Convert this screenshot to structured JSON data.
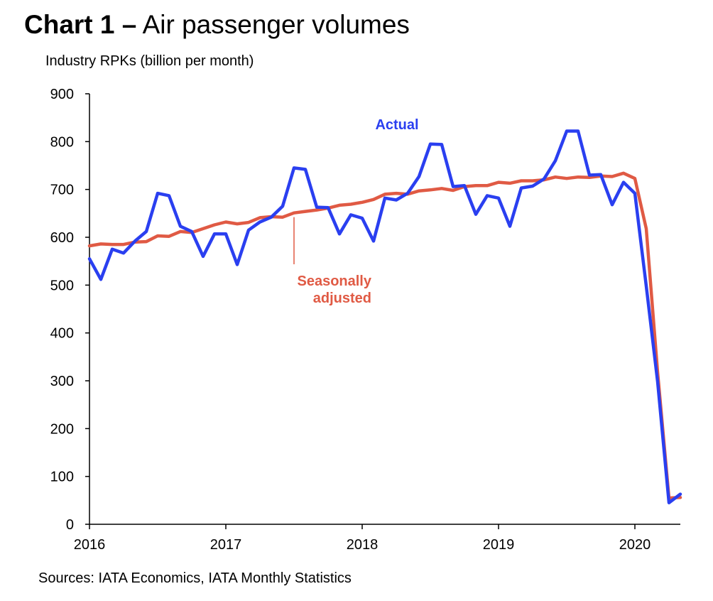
{
  "header": {
    "title_bold": "Chart 1 –",
    "title_rest": " Air passenger volumes"
  },
  "footer": {
    "source": "Sources: IATA Economics, IATA Monthly Statistics"
  },
  "colors": {
    "actual": "#2a3ff0",
    "seasonally_adjusted": "#e05a44",
    "axis": "#000000"
  },
  "chart_data": {
    "type": "line",
    "title": "Chart 1 – Air passenger volumes",
    "ylabel": "Industry RPKs (billion per month)",
    "xlabel": "",
    "ylim": [
      0,
      900
    ],
    "yticks": [
      0,
      100,
      200,
      300,
      400,
      500,
      600,
      700,
      800,
      900
    ],
    "xlim": [
      "2016-01",
      "2020-05"
    ],
    "xticks": [
      "2016",
      "2017",
      "2018",
      "2019",
      "2020"
    ],
    "grid": false,
    "annotations": [
      "Actual",
      "Seasonally",
      "adjusted"
    ],
    "x": [
      "2016-01",
      "2016-02",
      "2016-03",
      "2016-04",
      "2016-05",
      "2016-06",
      "2016-07",
      "2016-08",
      "2016-09",
      "2016-10",
      "2016-11",
      "2016-12",
      "2017-01",
      "2017-02",
      "2017-03",
      "2017-04",
      "2017-05",
      "2017-06",
      "2017-07",
      "2017-08",
      "2017-09",
      "2017-10",
      "2017-11",
      "2017-12",
      "2018-01",
      "2018-02",
      "2018-03",
      "2018-04",
      "2018-05",
      "2018-06",
      "2018-07",
      "2018-08",
      "2018-09",
      "2018-10",
      "2018-11",
      "2018-12",
      "2019-01",
      "2019-02",
      "2019-03",
      "2019-04",
      "2019-05",
      "2019-06",
      "2019-07",
      "2019-08",
      "2019-09",
      "2019-10",
      "2019-11",
      "2019-12",
      "2020-01",
      "2020-02",
      "2020-03",
      "2020-04",
      "2020-05"
    ],
    "series": [
      {
        "name": "Actual",
        "values": [
          555,
          512,
          575,
          567,
          592,
          612,
          692,
          687,
          623,
          612,
          560,
          607,
          607,
          543,
          615,
          632,
          642,
          665,
          745,
          742,
          663,
          662,
          607,
          647,
          640,
          592,
          682,
          678,
          692,
          727,
          795,
          794,
          706,
          708,
          648,
          687,
          682,
          623,
          703,
          707,
          722,
          760,
          822,
          822,
          730,
          731,
          668,
          715,
          692,
          498,
          298,
          45,
          63
        ]
      },
      {
        "name": "Seasonally adjusted",
        "values": [
          582,
          586,
          585,
          585,
          590,
          591,
          603,
          602,
          612,
          610,
          618,
          626,
          632,
          628,
          631,
          641,
          643,
          642,
          651,
          654,
          657,
          661,
          667,
          669,
          673,
          679,
          690,
          692,
          690,
          697,
          699,
          702,
          698,
          706,
          708,
          708,
          715,
          713,
          718,
          718,
          720,
          726,
          723,
          726,
          725,
          728,
          727,
          734,
          723,
          618,
          318,
          55,
          56
        ]
      }
    ]
  }
}
